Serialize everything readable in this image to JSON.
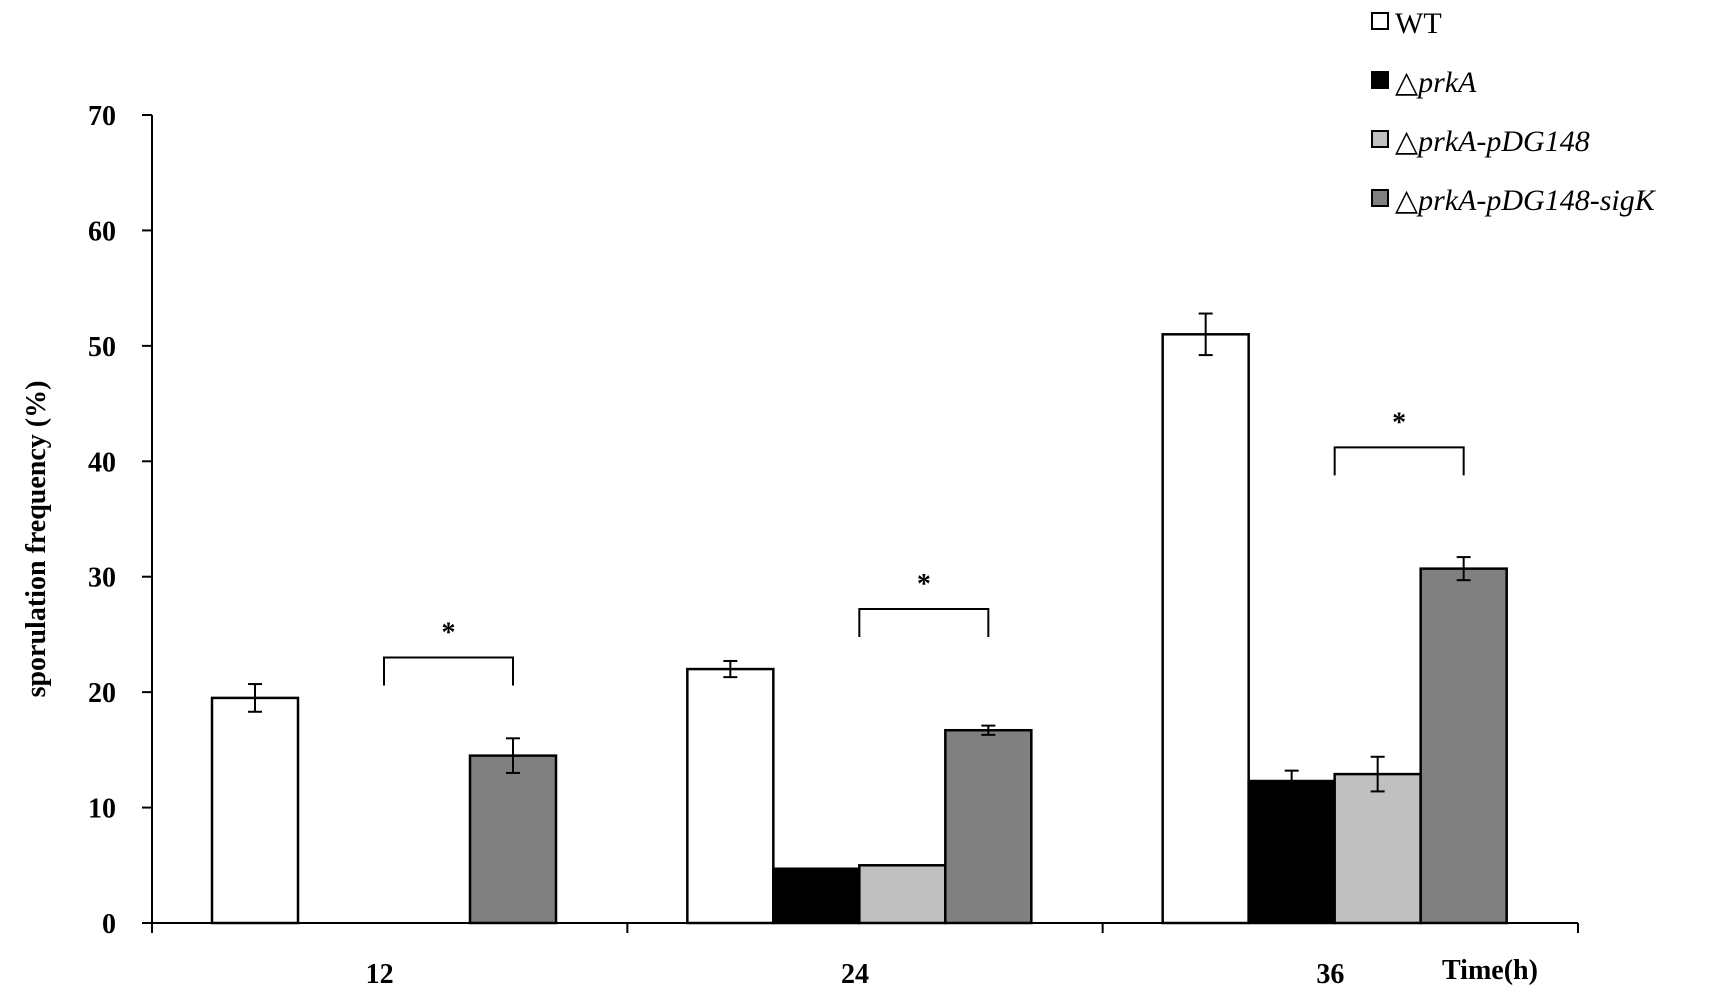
{
  "chart_data": {
    "type": "bar",
    "title": "",
    "xlabel": "Time(h)",
    "ylabel": "sporulation frequency (%)",
    "ylim": [
      0,
      70
    ],
    "yticks": [
      "0",
      "10",
      "20",
      "30",
      "40",
      "50",
      "60",
      "70"
    ],
    "categories": [
      "12",
      "24",
      "36"
    ],
    "grid": false,
    "legend_position": "top-right",
    "series": [
      {
        "name": "WT",
        "italic": false,
        "color": "#ffffff",
        "values": [
          19.5,
          22.0,
          51.0
        ],
        "errors": [
          1.2,
          0.7,
          1.8
        ]
      },
      {
        "name": "△prkA",
        "italic": true,
        "color": "#000000",
        "values": [
          0,
          4.7,
          12.3
        ],
        "errors": [
          0,
          0,
          0.9
        ]
      },
      {
        "name": "△prkA-pDG148",
        "italic": true,
        "color": "#c0c0c0",
        "values": [
          0,
          5.0,
          12.9
        ],
        "errors": [
          0,
          0,
          1.5
        ]
      },
      {
        "name": "△prkA-pDG148-sigK",
        "italic": true,
        "color": "#808080",
        "values": [
          14.5,
          16.7,
          30.7
        ],
        "errors": [
          1.5,
          0.4,
          1.0
        ]
      }
    ],
    "annotations": [
      {
        "text": "*",
        "category": "12",
        "from_series": 1,
        "to_series": 3,
        "level": 23
      },
      {
        "text": "*",
        "category": "24",
        "from_series": 1,
        "to_series": 3,
        "level": 27.2
      },
      {
        "text": "*",
        "category": "36",
        "from_series": 1,
        "to_series": 3,
        "level": 41.2
      }
    ]
  }
}
